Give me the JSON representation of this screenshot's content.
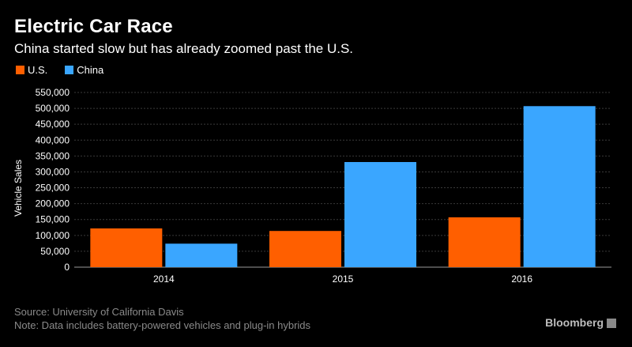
{
  "title": "Electric Car Race",
  "subtitle": "China started slow but has already zoomed past the U.S.",
  "source": "Source: University of California Davis",
  "note": "Note: Data includes battery-powered vehicles and plug-in hybrids",
  "brand": "Bloomberg",
  "chart_data": {
    "type": "bar",
    "title": "Electric Car Race",
    "subtitle": "China started slow but has already zoomed past the U.S.",
    "xlabel": "",
    "ylabel": "Vehicle Sales",
    "categories": [
      "2014",
      "2015",
      "2016"
    ],
    "series": [
      {
        "name": "U.S.",
        "color": "#ff5f00",
        "values": [
          122000,
          114000,
          157000
        ]
      },
      {
        "name": "China",
        "color": "#3aa6ff",
        "values": [
          74000,
          331000,
          507000
        ]
      }
    ],
    "ylim": [
      0,
      550000
    ],
    "yticks": [
      0,
      50000,
      100000,
      150000,
      200000,
      250000,
      300000,
      350000,
      400000,
      450000,
      500000,
      550000
    ],
    "ytick_labels": [
      "0",
      "50,000",
      "100,000",
      "150,000",
      "200,000",
      "250,000",
      "300,000",
      "350,000",
      "400,000",
      "450,000",
      "500,000",
      "550,000"
    ],
    "grid": true,
    "legend_position": "top-left"
  }
}
